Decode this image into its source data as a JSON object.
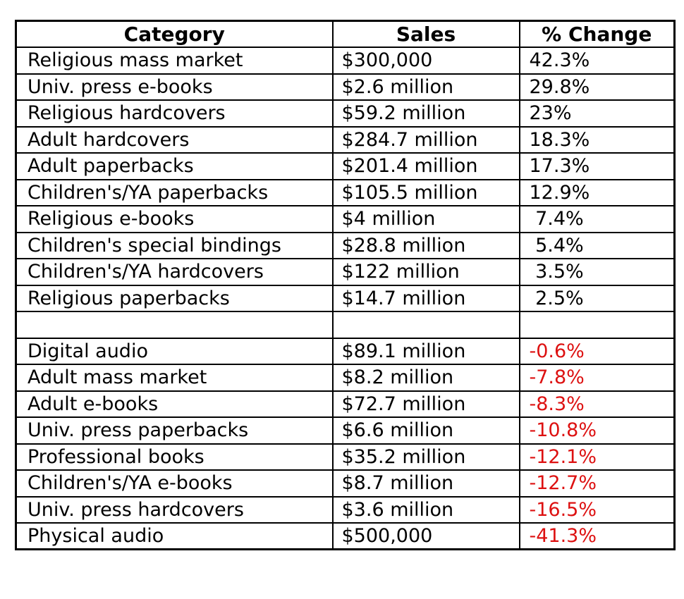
{
  "chart_data": {
    "type": "table",
    "title": "",
    "columns": [
      "Category",
      "Sales",
      "% Change"
    ],
    "rows": [
      {
        "category": "Religious mass market",
        "sales": "$300,000",
        "change": "42.3%",
        "change_pct": 42.3,
        "negative": false
      },
      {
        "category": "Univ. press e-books",
        "sales": "$2.6 million",
        "change": "29.8%",
        "change_pct": 29.8,
        "negative": false
      },
      {
        "category": "Religious hardcovers",
        "sales": "$59.2 million",
        "change": "23%",
        "change_pct": 23,
        "negative": false
      },
      {
        "category": "Adult hardcovers",
        "sales": "$284.7 million",
        "change": "18.3%",
        "change_pct": 18.3,
        "negative": false
      },
      {
        "category": "Adult paperbacks",
        "sales": "$201.4 million",
        "change": "17.3%",
        "change_pct": 17.3,
        "negative": false
      },
      {
        "category": "Children's/YA paperbacks",
        "sales": "$105.5 million",
        "change": "12.9%",
        "change_pct": 12.9,
        "negative": false
      },
      {
        "category": "Religious e-books",
        "sales": "$4 million",
        "change": " 7.4%",
        "change_pct": 7.4,
        "negative": false
      },
      {
        "category": "Children's special bindings",
        "sales": "$28.8 million",
        "change": " 5.4%",
        "change_pct": 5.4,
        "negative": false
      },
      {
        "category": "Children's/YA hardcovers",
        "sales": "$122 million",
        "change": " 3.5%",
        "change_pct": 3.5,
        "negative": false
      },
      {
        "category": "Religious paperbacks",
        "sales": "$14.7 million",
        "change": " 2.5%",
        "change_pct": 2.5,
        "negative": false
      },
      {
        "category": "",
        "sales": "",
        "change": "",
        "change_pct": null,
        "negative": false,
        "separator": true
      },
      {
        "category": "Digital audio",
        "sales": "$89.1 million",
        "change": "-0.6%",
        "change_pct": -0.6,
        "negative": true
      },
      {
        "category": "Adult mass market",
        "sales": "$8.2 million",
        "change": "-7.8%",
        "change_pct": -7.8,
        "negative": true
      },
      {
        "category": "Adult e-books",
        "sales": "$72.7 million",
        "change": "-8.3%",
        "change_pct": -8.3,
        "negative": true
      },
      {
        "category": "Univ. press paperbacks",
        "sales": "$6.6 million",
        "change": "-10.8%",
        "change_pct": -10.8,
        "negative": true
      },
      {
        "category": "Professional books",
        "sales": "$35.2 million",
        "change": "-12.1%",
        "change_pct": -12.1,
        "negative": true
      },
      {
        "category": "Children's/YA e-books",
        "sales": "$8.7 million",
        "change": "-12.7%",
        "change_pct": -12.7,
        "negative": true
      },
      {
        "category": "Univ. press hardcovers",
        "sales": "$3.6 million",
        "change": "-16.5%",
        "change_pct": -16.5,
        "negative": true
      },
      {
        "category": "Physical audio",
        "sales": "$500,000",
        "change": "-41.3%",
        "change_pct": -41.3,
        "negative": true
      }
    ]
  },
  "colors": {
    "negative_change": "#dd1111",
    "positive_change": "#000000",
    "border": "#000000",
    "background": "#ffffff"
  }
}
